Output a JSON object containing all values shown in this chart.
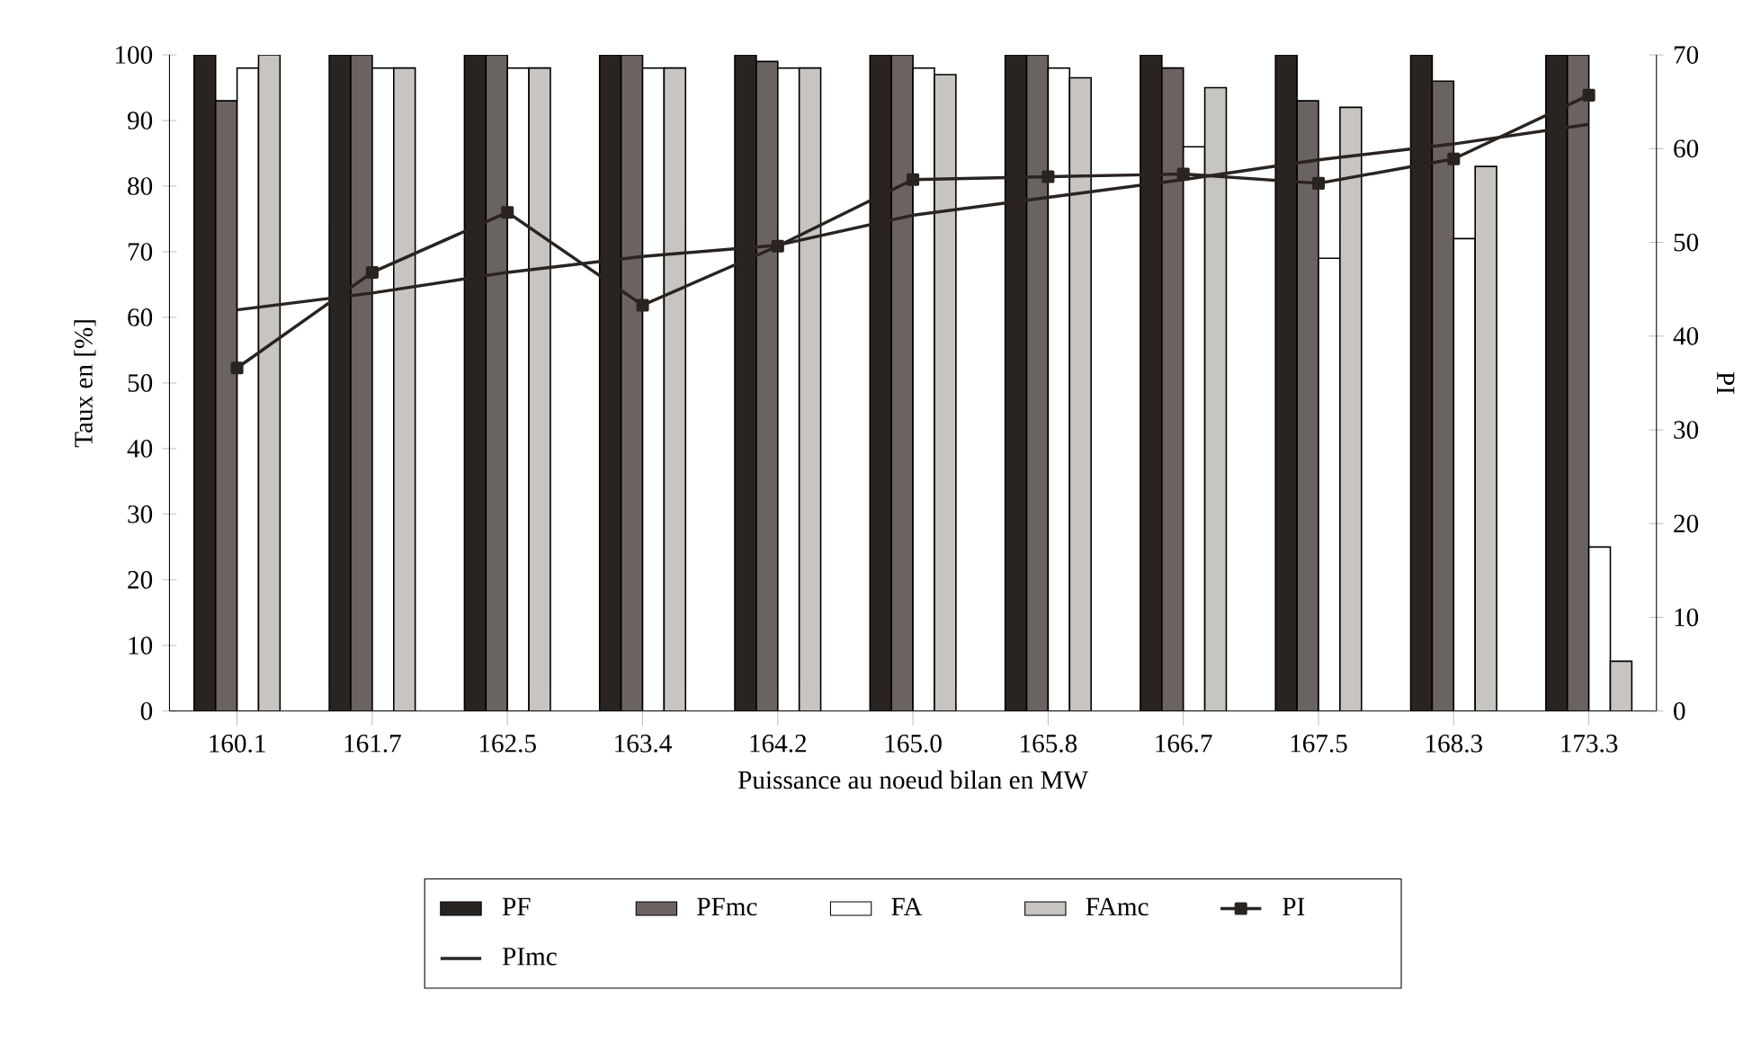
{
  "chart_data": {
    "type": "bar",
    "xlabel": "Puissance au noeud bilan en MW",
    "ylabel": "Taux en  [%]",
    "y2label": "PI",
    "categories": [
      "160.1",
      "161.7",
      "162.5",
      "163.4",
      "164.2",
      "165.0",
      "165.8",
      "166.7",
      "167.5",
      "168.3",
      "173.3"
    ],
    "ylim": [
      0,
      100
    ],
    "yticks": [
      0,
      10,
      20,
      30,
      40,
      50,
      60,
      70,
      80,
      90,
      100
    ],
    "y2lim": [
      0,
      70
    ],
    "y2ticks": [
      0,
      10,
      20,
      30,
      40,
      50,
      60,
      70
    ],
    "legend": "bottom",
    "grid": false,
    "series": [
      {
        "name": "PF",
        "color": "#2a2421",
        "values": [
          100,
          100,
          100,
          100,
          100,
          100,
          100,
          100,
          100,
          100,
          100
        ]
      },
      {
        "name": "PFmc",
        "color": "#6b6360",
        "values": [
          93,
          100,
          100,
          100,
          99,
          100,
          100,
          98,
          93,
          96,
          100
        ]
      },
      {
        "name": "FA",
        "color": "#ffffff",
        "values": [
          98,
          98,
          98,
          98,
          98,
          98,
          98,
          86,
          69,
          72,
          25
        ]
      },
      {
        "name": "FAmc",
        "color": "#c8c4c0",
        "values": [
          100,
          98,
          98,
          98,
          98,
          97,
          96.5,
          95,
          92,
          83,
          7.6
        ]
      },
      {
        "name": "PI",
        "type": "line",
        "axis": "y2",
        "marker": "square",
        "color": "#2a2421",
        "values": [
          36.6,
          46.8,
          53.2,
          43.3,
          49.6,
          56.7,
          57,
          57.3,
          56.3,
          58.9,
          65.7
        ]
      },
      {
        "name": "PImc",
        "type": "line",
        "axis": "y2",
        "marker": "none",
        "color": "#2a2421",
        "values": [
          42.8,
          44.6,
          46.8,
          48.5,
          49.7,
          52.9,
          54.8,
          56.7,
          58.8,
          60.5,
          62.6
        ]
      }
    ]
  }
}
